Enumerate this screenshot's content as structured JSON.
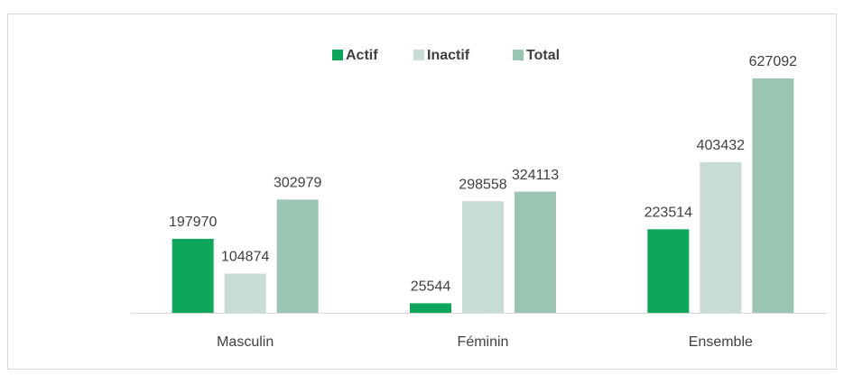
{
  "chart_data": {
    "type": "bar",
    "categories": [
      "Masculin",
      "Féminin",
      "Ensemble"
    ],
    "series": [
      {
        "name": "Actif",
        "color": "#0ea65a",
        "values": [
          197970,
          25544,
          223514
        ]
      },
      {
        "name": "Inactif",
        "color": "#c6dcd4",
        "values": [
          104874,
          298558,
          403432
        ]
      },
      {
        "name": "Total",
        "color": "#9cc4b2",
        "values": [
          302979,
          324113,
          627092
        ]
      }
    ],
    "legend": "top"
  }
}
